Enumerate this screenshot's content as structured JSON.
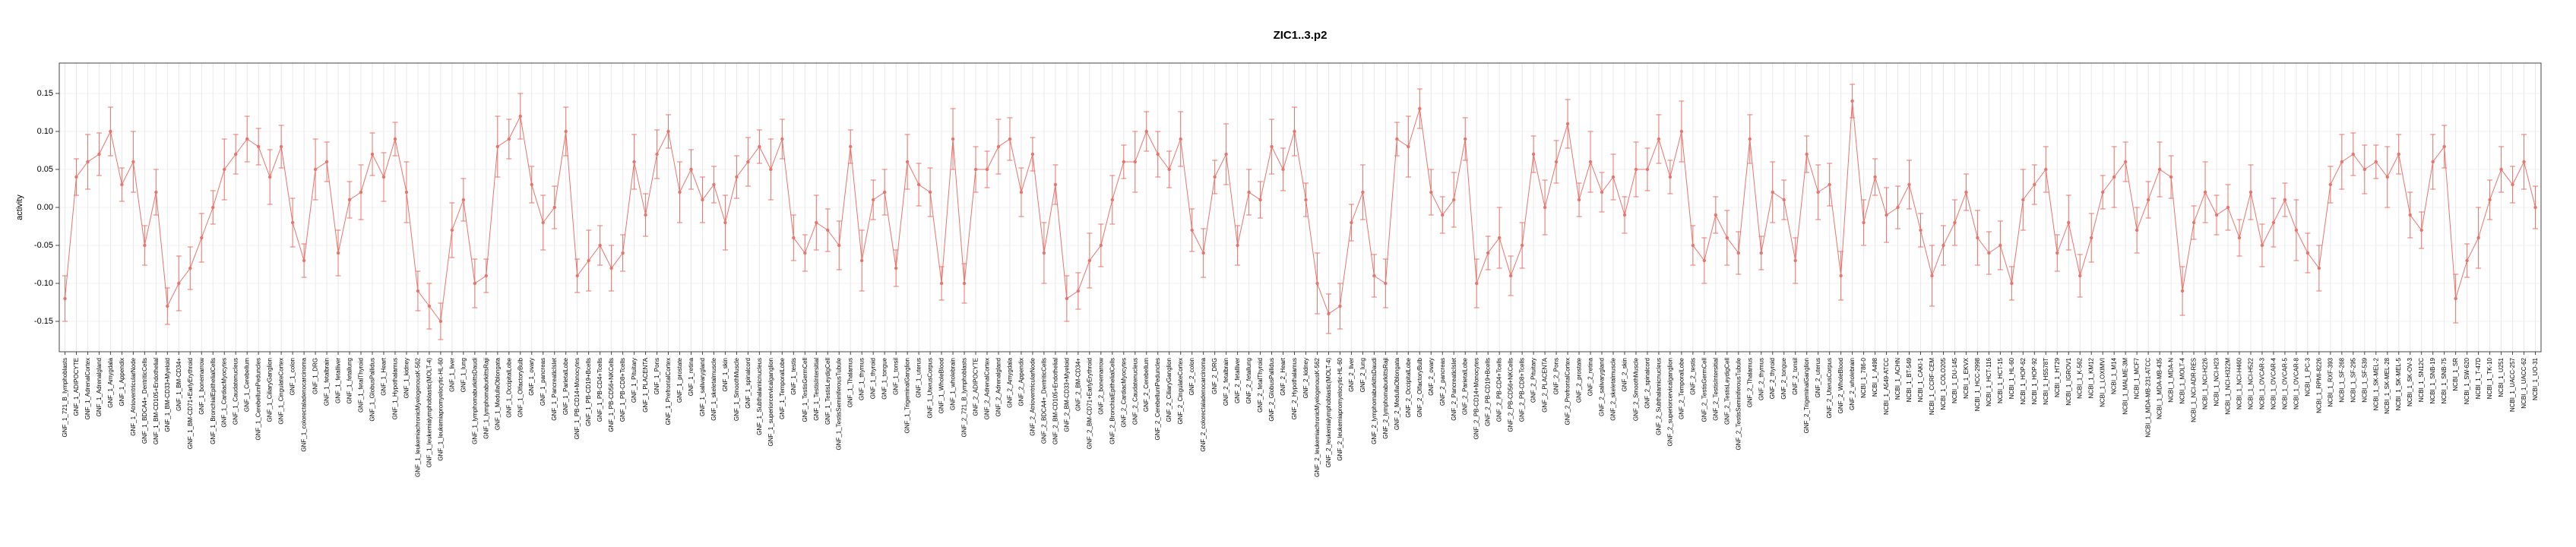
{
  "page": {
    "background": "#ffffff"
  },
  "style": {
    "series_color": "#e8746c",
    "grid_color": "#e8e8e8",
    "hgrid_color": "#f2f2f2",
    "axis_color": "#444444",
    "text_color": "#000000"
  },
  "chart_data": {
    "type": "line",
    "title": "ZIC1..3.p2",
    "xlabel": "",
    "ylabel": "activity",
    "ylim": [
      -0.19,
      0.19
    ],
    "yticks": [
      -0.15,
      -0.1,
      -0.05,
      0,
      0.05,
      0.1,
      0.15
    ],
    "ytick_labels": [
      "-0.15",
      "-0.10",
      "-0.05",
      "0.00",
      "0.05",
      "0.10",
      "0.15"
    ],
    "grid": "vertical-per-category",
    "legend": "none",
    "error_bars": true,
    "marker": "point",
    "groups": [
      {
        "name": "GNF_1",
        "prefix": "GNF_1_",
        "samples": [
          "721_B_lymphoblasts",
          "ADIPOCYTE",
          "AdrenalCortex",
          "Adrenalgland",
          "Amygdala",
          "Appendix",
          "AtrioventricularNode",
          "BDCA4+_DentriticCells",
          "BM-CD105+Endothelial",
          "BM-CD33+Myeloid",
          "BM-CD34+",
          "BM-CD71+EarlyErythroid",
          "bonemarrow",
          "BronchialEpithelialCells",
          "CardiacMyocytes",
          "Caudatenucleus",
          "Cerebellum",
          "CerebellumPeduncles",
          "CiliaryGanglion",
          "CingulateCortex",
          "colon",
          "colorectaladenocarcinoma",
          "DRG",
          "fetalbrain",
          "fetalliver",
          "fetallung",
          "fetalThyroid",
          "GlobusPallidus",
          "Heart",
          "Hypothalamus",
          "kidney",
          "leukemiachronicMyelogenousK-562",
          "leukemialymphoblastic(MOLT-4)",
          "leukemiapromyelocytic-HL-60",
          "liver",
          "lung",
          "lymphomaburkittsDaudi",
          "lymphomaburkittsRaji",
          "MedullaOblongata",
          "OccipitalLobe",
          "OlfactoryBulb",
          "ovary",
          "pancreas",
          "PancreaticIslet",
          "ParietalLobe",
          "PB-CD14+Monocytes",
          "PB-CD19+Bcells",
          "PB-CD4+Tcells",
          "PB-CD56+NKCells",
          "PB-CD8+Tcells",
          "Pituitary",
          "PLACENTA",
          "Pons",
          "PrefrontalCortex",
          "prostate",
          "retina",
          "salivarygland",
          "skeletalmuscle",
          "skin",
          "SmoothMuscle",
          "spinalcord",
          "Subthalamicnucleus",
          "superiorcervicalganglion",
          "TemporalLobe",
          "testis",
          "TestisGermCell",
          "TestisIntersitial",
          "TestisLeydigCell",
          "TestisSeminiferousTubule",
          "Thalamus",
          "thymus",
          "thyroid",
          "tongue",
          "tonsil",
          "TrigeminalGanglion",
          "uterus",
          "UterusCorpus",
          "WholeBlood",
          "wholebrain"
        ],
        "values": [
          -0.12,
          0.04,
          0.06,
          0.07,
          0.1,
          0.03,
          0.06,
          -0.05,
          0.02,
          -0.13,
          -0.1,
          -0.08,
          -0.04,
          0.0,
          0.05,
          0.07,
          0.09,
          0.08,
          0.04,
          0.08,
          -0.02,
          -0.07,
          0.05,
          0.06,
          -0.06,
          0.01,
          0.02,
          0.07,
          0.04,
          0.09,
          0.02,
          -0.11,
          -0.13,
          -0.15,
          -0.03,
          0.01,
          -0.1,
          -0.09,
          0.08,
          0.09,
          0.12,
          0.03,
          -0.02,
          0.0,
          0.1,
          -0.09,
          -0.07,
          -0.05,
          -0.08,
          -0.06,
          0.06,
          -0.01,
          0.07,
          0.1,
          0.02,
          0.05,
          0.01,
          0.03,
          -0.02,
          0.04,
          0.06,
          0.08,
          0.05,
          0.09,
          -0.04,
          -0.06,
          -0.02,
          -0.03,
          -0.05,
          0.08,
          -0.07,
          0.01,
          0.02,
          -0.08,
          0.06,
          0.03,
          0.02,
          -0.1,
          0.09
        ],
        "errors": [
          0.03,
          0.024,
          0.036,
          0.028,
          0.032,
          0.022,
          0.04,
          0.026,
          0.03,
          0.024,
          0.036,
          0.028,
          0.032,
          0.022,
          0.04,
          0.026,
          0.03,
          0.024,
          0.036,
          0.028,
          0.032,
          0.022,
          0.04,
          0.026,
          0.03,
          0.024,
          0.036,
          0.028,
          0.032,
          0.022,
          0.04,
          0.026,
          0.03,
          0.024,
          0.036,
          0.028,
          0.032,
          0.022,
          0.04,
          0.026,
          0.03,
          0.024,
          0.036,
          0.028,
          0.032,
          0.022,
          0.04,
          0.026,
          0.03,
          0.024,
          0.036,
          0.028,
          0.032,
          0.022,
          0.04,
          0.026,
          0.03,
          0.024,
          0.036,
          0.028,
          0.032,
          0.022,
          0.04,
          0.026,
          0.03,
          0.024,
          0.036,
          0.028,
          0.032,
          0.022,
          0.04,
          0.026,
          0.03,
          0.024,
          0.036,
          0.028,
          0.032,
          0.022,
          0.04
        ]
      },
      {
        "name": "GNF_2",
        "prefix": "GNF_2_",
        "samples": [
          "721_B_lymphoblasts",
          "ADIPOCYTE",
          "AdrenalCortex",
          "Adrenalgland",
          "Amygdala",
          "Appendix",
          "AtrioventricularNode",
          "BDCA4+_DentriticCells",
          "BM-CD105+Endothelial",
          "BM-CD33+Myeloid",
          "BM-CD34+",
          "BM-CD71+EarlyErythroid",
          "bonemarrow",
          "BronchialEpithelialCells",
          "CardiacMyocytes",
          "Caudatenucleus",
          "Cerebellum",
          "CerebellumPeduncles",
          "CiliaryGanglion",
          "CingulateCortex",
          "colon",
          "colorectaladenocarcinoma",
          "DRG",
          "fetalbrain",
          "fetalliver",
          "fetallung",
          "fetalThyroid",
          "GlobusPallidus",
          "Heart",
          "Hypothalamus",
          "kidney",
          "leukemiachronicMyelogenousK-562",
          "leukemialymphoblastic(MOLT-4)",
          "leukemiapromyelocytic-HL-60",
          "liver",
          "lung",
          "lymphomaburkittsDaudi",
          "lymphomaburkittsRaji",
          "MedullaOblongata",
          "OccipitalLobe",
          "OlfactoryBulb",
          "ovary",
          "pancreas",
          "PancreaticIslet",
          "ParietalLobe",
          "PB-CD14+Monocytes",
          "PB-CD19+Bcells",
          "PB-CD4+Tcells",
          "PB-CD56+NKCells",
          "PB-CD8+Tcells",
          "Pituitary",
          "PLACENTA",
          "Pons",
          "PrefrontalCortex",
          "prostate",
          "retina",
          "salivarygland",
          "skeletalmuscle",
          "skin",
          "SmoothMuscle",
          "spinalcord",
          "Subthalamicnucleus",
          "superiorcervicalganglion",
          "TemporalLobe",
          "testis",
          "TestisGermCell",
          "TestisIntersitial",
          "TestisLeydigCell",
          "TestisSeminiferousTubule",
          "Thalamus",
          "thymus",
          "thyroid",
          "tongue",
          "tonsil",
          "TrigeminalGanglion",
          "uterus",
          "UterusCorpus",
          "WholeBlood",
          "wholebrain"
        ],
        "values": [
          -0.1,
          0.05,
          0.05,
          0.08,
          0.09,
          0.02,
          0.07,
          -0.06,
          0.03,
          -0.12,
          -0.11,
          -0.07,
          -0.05,
          0.01,
          0.06,
          0.06,
          0.1,
          0.07,
          0.05,
          0.09,
          -0.03,
          -0.06,
          0.04,
          0.07,
          -0.05,
          0.02,
          0.01,
          0.08,
          0.05,
          0.1,
          0.01,
          -0.1,
          -0.14,
          -0.13,
          -0.02,
          0.02,
          -0.09,
          -0.1,
          0.09,
          0.08,
          0.13,
          0.02,
          -0.01,
          0.01,
          0.09,
          -0.1,
          -0.06,
          -0.04,
          -0.09,
          -0.05,
          0.07,
          0.0,
          0.06,
          0.11,
          0.01,
          0.06,
          0.02,
          0.04,
          -0.01,
          0.05,
          0.05,
          0.09,
          0.04,
          0.1,
          -0.05,
          -0.07,
          -0.01,
          -0.04,
          -0.06,
          0.09,
          -0.06,
          0.02,
          0.01,
          -0.07,
          0.07,
          0.02,
          0.03,
          -0.09,
          0.14
        ],
        "errors": [
          0.026,
          0.03,
          0.024,
          0.036,
          0.028,
          0.032,
          0.022,
          0.04,
          0.026,
          0.03,
          0.024,
          0.036,
          0.028,
          0.032,
          0.022,
          0.04,
          0.026,
          0.03,
          0.024,
          0.036,
          0.028,
          0.032,
          0.022,
          0.04,
          0.026,
          0.03,
          0.024,
          0.036,
          0.028,
          0.032,
          0.022,
          0.04,
          0.026,
          0.03,
          0.024,
          0.036,
          0.028,
          0.032,
          0.022,
          0.04,
          0.026,
          0.03,
          0.024,
          0.036,
          0.028,
          0.032,
          0.022,
          0.04,
          0.026,
          0.03,
          0.024,
          0.036,
          0.028,
          0.032,
          0.022,
          0.04,
          0.026,
          0.03,
          0.024,
          0.036,
          0.028,
          0.032,
          0.022,
          0.04,
          0.026,
          0.03,
          0.024,
          0.036,
          0.028,
          0.032,
          0.022,
          0.04,
          0.026,
          0.03,
          0.024,
          0.036,
          0.028,
          0.032,
          0.022
        ]
      },
      {
        "name": "NCBI",
        "prefix": "NCBI_1_",
        "samples": [
          "786-0",
          "A498",
          "A549-ATCC",
          "ACHN",
          "BT-549",
          "CAKI-1",
          "CCRF-CEM",
          "COLO205",
          "DU-145",
          "EKVX",
          "HCC-2998",
          "HCT-116",
          "HCT-15",
          "HL-60",
          "HOP-62",
          "HOP-92",
          "HS578T",
          "HT29",
          "IGROV1",
          "K-562",
          "KM12",
          "LOXIMVI",
          "M14",
          "MALME-3M",
          "MCF7",
          "MDA-MB-231-ATCC",
          "MDA-MB-435",
          "MDA-N",
          "MOLT-4",
          "NCI-ADR-RES",
          "NCI-H226",
          "NCI-H23",
          "NCI-H322M",
          "NCI-H460",
          "NCI-H522",
          "OVCAR-3",
          "OVCAR-4",
          "OVCAR-5",
          "OVCAR-8",
          "PC-3",
          "RPMI-8226",
          "RXF-393",
          "SF-268",
          "SF-295",
          "SF-539",
          "SK-MEL-2",
          "SK-MEL-28",
          "SK-MEL-5",
          "SK-OV-3",
          "SN12C",
          "SNB-19",
          "SNB-75",
          "SR",
          "SW-620",
          "T-47D",
          "TK-10",
          "U251",
          "UACC-257",
          "UACC-62",
          "UO-31"
        ],
        "values": [
          -0.02,
          0.04,
          -0.01,
          0.0,
          0.03,
          -0.03,
          -0.09,
          -0.05,
          -0.02,
          0.02,
          -0.04,
          -0.06,
          -0.05,
          -0.1,
          0.01,
          0.03,
          0.05,
          -0.06,
          -0.02,
          -0.09,
          -0.04,
          0.02,
          0.04,
          0.06,
          -0.03,
          0.01,
          0.05,
          0.04,
          -0.11,
          -0.02,
          0.02,
          -0.01,
          0.0,
          -0.04,
          0.02,
          -0.05,
          -0.02,
          0.01,
          -0.03,
          -0.06,
          -0.08,
          0.03,
          0.06,
          0.07,
          0.05,
          0.06,
          0.04,
          0.07,
          -0.01,
          -0.03,
          0.06,
          0.08,
          -0.12,
          -0.07,
          -0.04,
          0.01,
          0.05,
          0.03,
          0.06,
          0.0
        ],
        "errors": [
          0.03,
          0.024,
          0.036,
          0.028,
          0.032,
          0.022,
          0.04,
          0.026,
          0.03,
          0.024,
          0.036,
          0.028,
          0.032,
          0.022,
          0.04,
          0.026,
          0.03,
          0.024,
          0.036,
          0.028,
          0.032,
          0.022,
          0.04,
          0.026,
          0.03,
          0.024,
          0.036,
          0.028,
          0.032,
          0.022,
          0.04,
          0.026,
          0.03,
          0.024,
          0.036,
          0.028,
          0.032,
          0.022,
          0.04,
          0.026,
          0.03,
          0.024,
          0.036,
          0.028,
          0.032,
          0.022,
          0.04,
          0.026,
          0.03,
          0.024,
          0.036,
          0.028,
          0.032,
          0.022,
          0.04,
          0.026,
          0.03,
          0.024,
          0.036,
          0.028
        ]
      }
    ]
  }
}
